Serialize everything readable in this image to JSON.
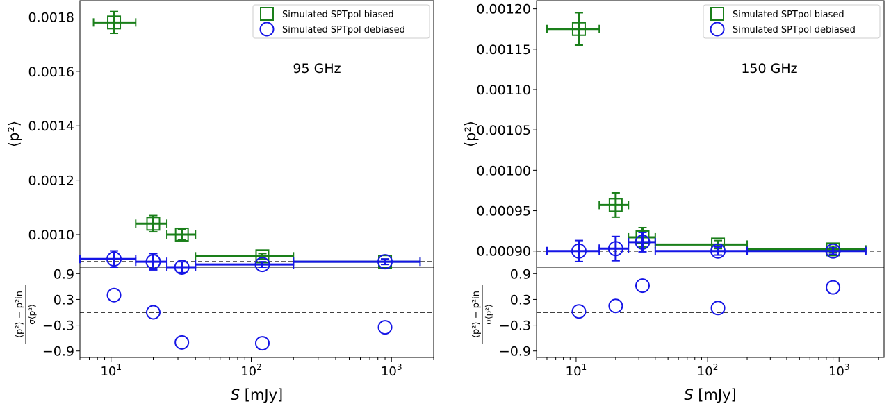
{
  "colors": {
    "biased": "#1a7f1a",
    "debiased": "#1515e6",
    "axis": "#000000",
    "reference": "#000000"
  },
  "chart_data": [
    {
      "type": "scatter",
      "annotation": "95 GHz",
      "xlabel": "S [mJy]",
      "xscale": "log",
      "xlim": [
        6,
        2000
      ],
      "x_tick_labels": [
        "10",
        "10",
        "10"
      ],
      "x_tick_exponents": [
        "1",
        "2",
        "3"
      ],
      "top_panel": {
        "ylabel": "⟨p²⟩",
        "ylim": [
          0.00088,
          0.00186
        ],
        "yticks": [
          0.001,
          0.0012,
          0.0014,
          0.0016,
          0.0018
        ],
        "ytick_labels": [
          "0.0010",
          "0.0012",
          "0.0014",
          "0.0016",
          "0.0018"
        ],
        "reference_line": 0.0009,
        "legend_position": "top-right",
        "series": [
          {
            "name": "Simulated SPTpol biased",
            "marker": "square",
            "color": "#1a7f1a",
            "points": [
              {
                "x": 10.5,
                "y": 0.00178,
                "xerr": [
                  7.5,
                  15
                ],
                "yerr": 4e-05
              },
              {
                "x": 20,
                "y": 0.00104,
                "xerr": [
                  15,
                  25
                ],
                "yerr": 3e-05
              },
              {
                "x": 32,
                "y": 0.001,
                "xerr": [
                  25,
                  40
                ],
                "yerr": 2e-05
              },
              {
                "x": 120,
                "y": 0.00092,
                "xerr": [
                  40,
                  200
                ],
                "yerr": 1e-05
              },
              {
                "x": 900,
                "y": 0.0009,
                "xerr": [
                  200,
                  1600
                ],
                "yerr": 1e-05
              }
            ]
          },
          {
            "name": "Simulated SPTpol debiased",
            "marker": "circle",
            "color": "#1515e6",
            "points": [
              {
                "x": 10.5,
                "y": 0.00091,
                "xerr": [
                  6,
                  15
                ],
                "yerr": 3e-05
              },
              {
                "x": 20,
                "y": 0.0009,
                "xerr": [
                  15,
                  25
                ],
                "yerr": 3e-05
              },
              {
                "x": 32,
                "y": 0.00088,
                "xerr": [
                  25,
                  40
                ],
                "yerr": 2e-05
              },
              {
                "x": 120,
                "y": 0.00089,
                "xerr": [
                  40,
                  200
                ],
                "yerr": 1e-05
              },
              {
                "x": 900,
                "y": 0.0009,
                "xerr": [
                  200,
                  1600
                ],
                "yerr": 1e-05
              }
            ]
          }
        ]
      },
      "bottom_panel": {
        "ylabel": "(⟨p²⟩ − p²in) / σ⟨p²⟩",
        "ylim": [
          -1.05,
          1.05
        ],
        "yticks": [
          -0.9,
          -0.3,
          0.3,
          0.9
        ],
        "ytick_labels": [
          "−0.9",
          "−0.3",
          "0.3",
          "0.9"
        ],
        "reference_line": 0.0,
        "series": [
          {
            "marker": "circle",
            "color": "#1515e6",
            "points": [
              {
                "x": 10.5,
                "y": 0.4
              },
              {
                "x": 20,
                "y": 0.0
              },
              {
                "x": 32,
                "y": -0.7
              },
              {
                "x": 120,
                "y": -0.72
              },
              {
                "x": 900,
                "y": -0.35
              }
            ]
          }
        ]
      }
    },
    {
      "type": "scatter",
      "annotation": "150 GHz",
      "xlabel": "S [mJy]",
      "xscale": "log",
      "xlim": [
        5,
        2200
      ],
      "x_tick_labels": [
        "10",
        "10",
        "10"
      ],
      "x_tick_exponents": [
        "1",
        "2",
        "3"
      ],
      "top_panel": {
        "ylabel": "⟨p²⟩",
        "ylim": [
          0.00088,
          0.00121
        ],
        "yticks": [
          0.0009,
          0.00095,
          0.001,
          0.00105,
          0.0011,
          0.00115,
          0.0012
        ],
        "ytick_labels": [
          "0.00090",
          "0.00095",
          "0.00100",
          "0.00105",
          "0.00110",
          "0.00115",
          "0.00120"
        ],
        "reference_line": 0.0009,
        "legend_position": "top-right",
        "series": [
          {
            "name": "Simulated SPTpol biased",
            "marker": "square",
            "color": "#1a7f1a",
            "points": [
              {
                "x": 10.5,
                "y": 0.001175,
                "xerr": [
                  6,
                  15
                ],
                "yerr": 2e-05
              },
              {
                "x": 20,
                "y": 0.000957,
                "xerr": [
                  15,
                  25
                ],
                "yerr": 1.5e-05
              },
              {
                "x": 32,
                "y": 0.000917,
                "xerr": [
                  25,
                  40
                ],
                "yerr": 1.2e-05
              },
              {
                "x": 120,
                "y": 0.000908,
                "xerr": [
                  40,
                  200
                ],
                "yerr": 5e-06
              },
              {
                "x": 900,
                "y": 0.000902,
                "xerr": [
                  200,
                  1600
                ],
                "yerr": 4e-06
              }
            ]
          },
          {
            "name": "Simulated SPTpol debiased",
            "marker": "circle",
            "color": "#1515e6",
            "points": [
              {
                "x": 10.5,
                "y": 0.0009,
                "xerr": [
                  6,
                  15
                ],
                "yerr": 1.3e-05
              },
              {
                "x": 20,
                "y": 0.000903,
                "xerr": [
                  15,
                  25
                ],
                "yerr": 1.5e-05
              },
              {
                "x": 32,
                "y": 0.000911,
                "xerr": [
                  25,
                  40
                ],
                "yerr": 1.2e-05
              },
              {
                "x": 120,
                "y": 0.0009,
                "xerr": [
                  40,
                  200
                ],
                "yerr": 5e-06
              },
              {
                "x": 900,
                "y": 0.0009,
                "xerr": [
                  200,
                  1600
                ],
                "yerr": 4e-06
              }
            ]
          }
        ]
      },
      "bottom_panel": {
        "ylabel": "(⟨p²⟩ − p²in) / σ⟨p²⟩",
        "ylim": [
          -1.05,
          1.05
        ],
        "yticks": [
          -0.9,
          -0.3,
          0.3,
          0.9
        ],
        "ytick_labels": [
          "−0.9",
          "−0.3",
          "0.3",
          "0.9"
        ],
        "reference_line": 0.0,
        "series": [
          {
            "marker": "circle",
            "color": "#1515e6",
            "points": [
              {
                "x": 10.5,
                "y": 0.02
              },
              {
                "x": 20,
                "y": 0.15
              },
              {
                "x": 32,
                "y": 0.62
              },
              {
                "x": 120,
                "y": 0.1
              },
              {
                "x": 900,
                "y": 0.58
              }
            ]
          }
        ]
      }
    }
  ]
}
